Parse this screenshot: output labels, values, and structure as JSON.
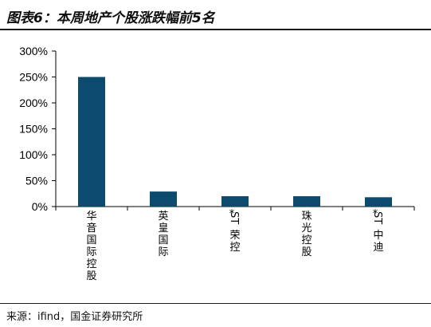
{
  "header": {
    "title": "图表6：本周地产个股涨跌幅前5名"
  },
  "footer": {
    "source": "来源：ifind，国金证券研究所"
  },
  "colors": {
    "bar": "#0c4a6e",
    "axis": "#000000"
  },
  "chart_data": {
    "type": "bar",
    "categories": [
      "华音国际控股",
      "英皇国际",
      "*ST荣控",
      "珠光控股",
      "*ST中迪"
    ],
    "values": [
      250,
      29,
      20,
      20,
      18
    ],
    "ylim": [
      0,
      300
    ],
    "yticks": [
      "0%",
      "50%",
      "100%",
      "150%",
      "200%",
      "250%",
      "300%"
    ],
    "title": "",
    "xlabel": "",
    "ylabel": "",
    "grid": false,
    "legend": "none"
  }
}
